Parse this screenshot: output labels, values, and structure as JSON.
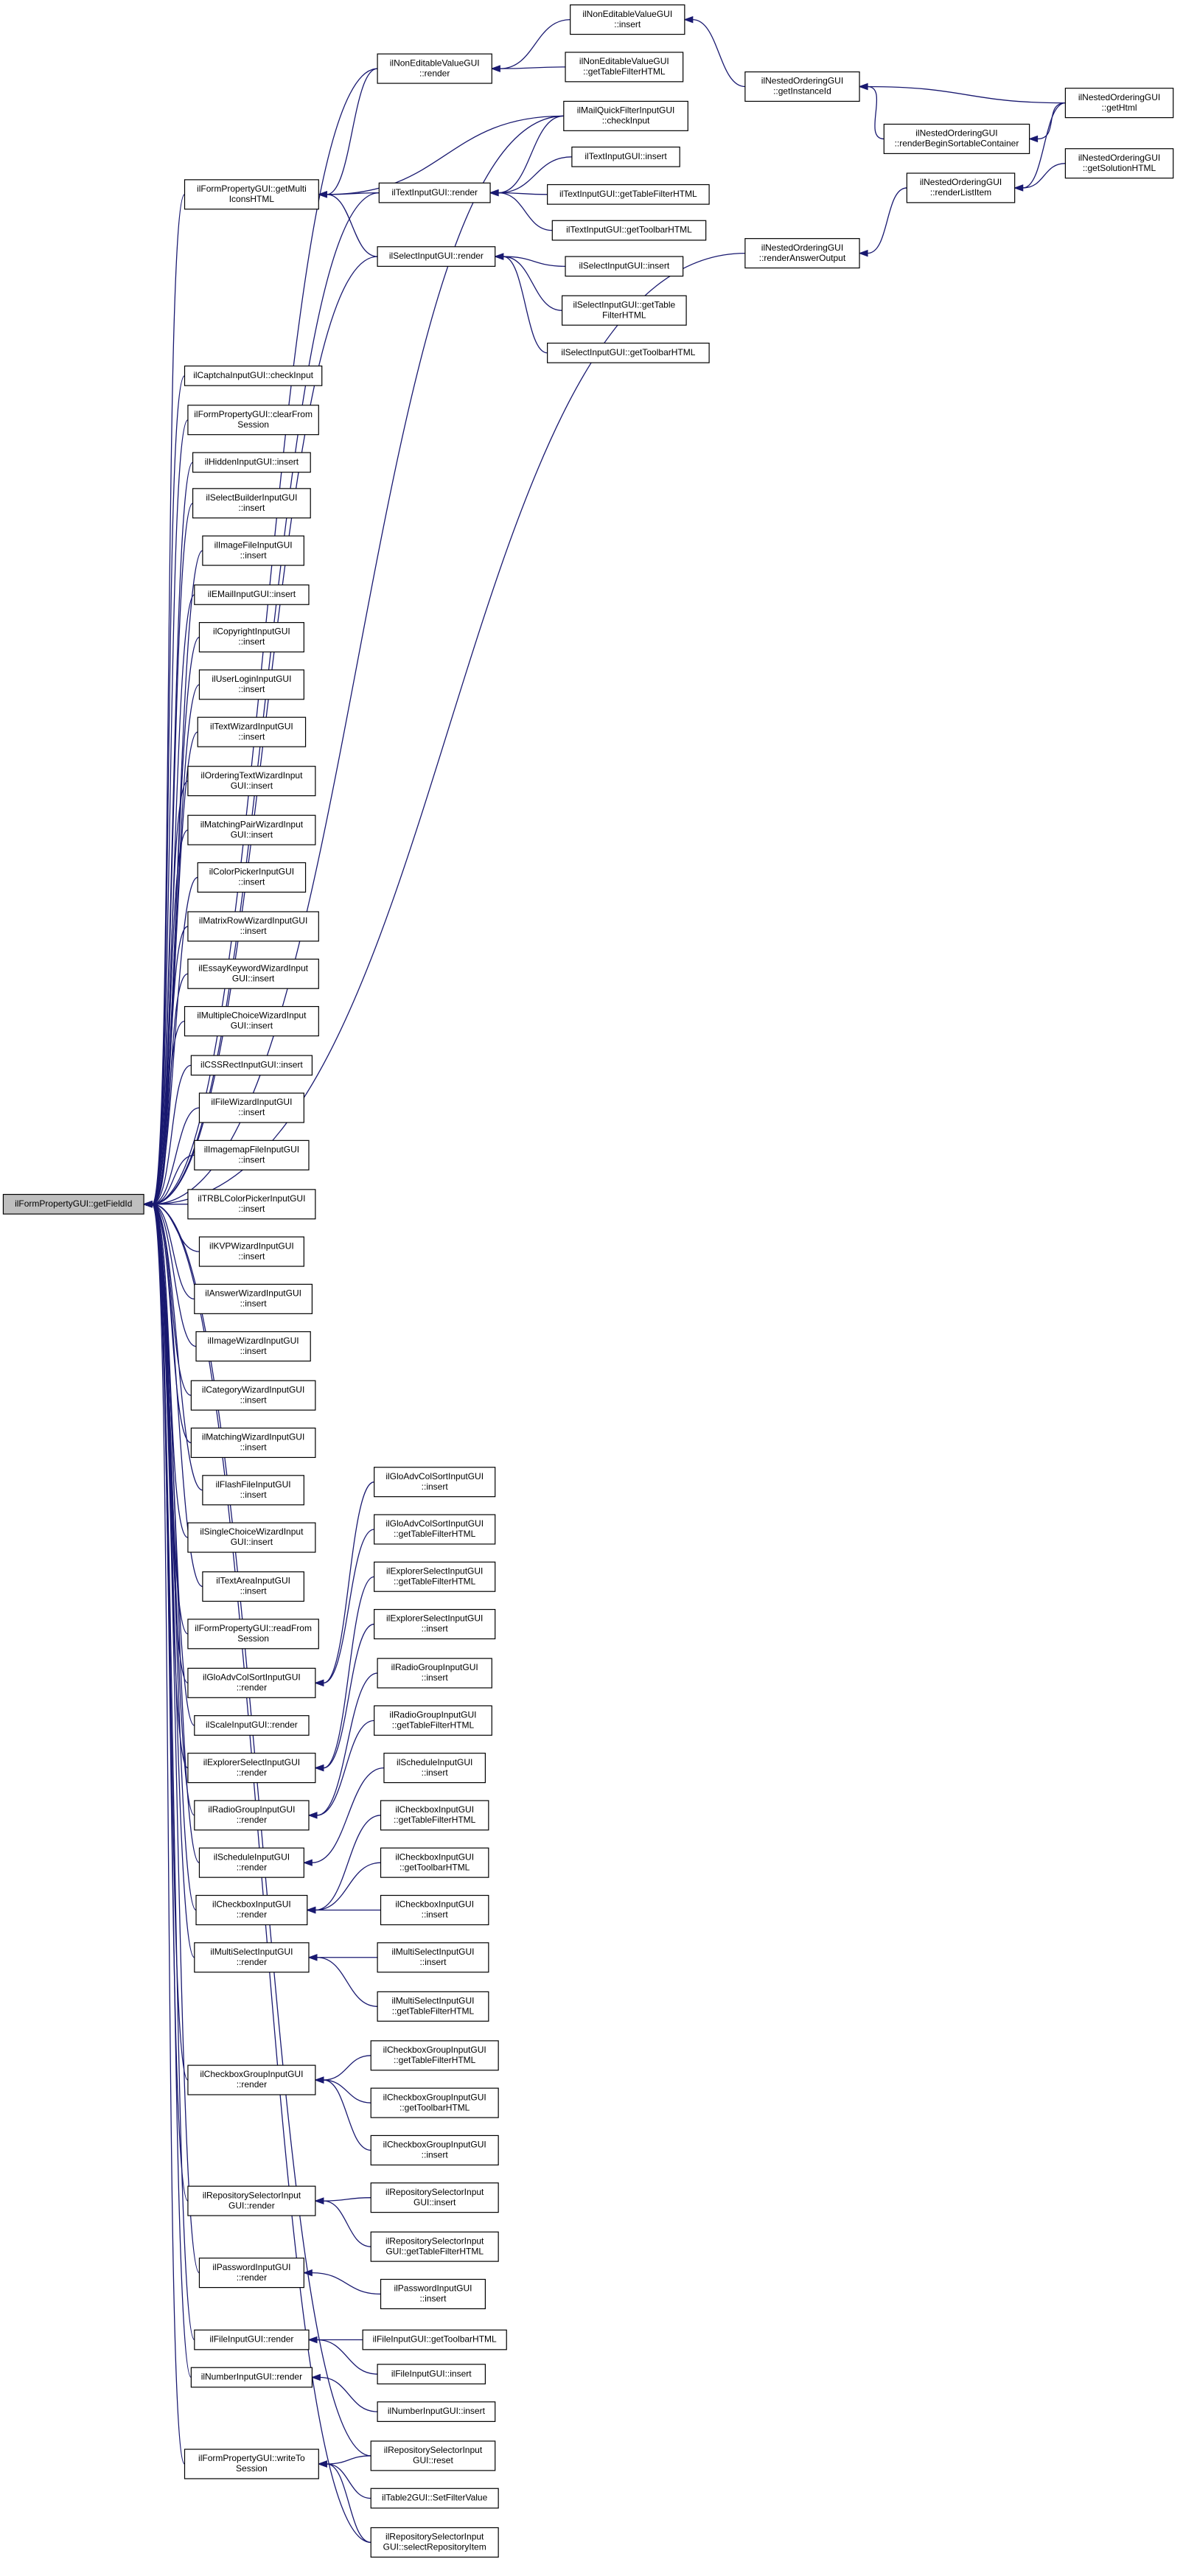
{
  "nodes": [
    {
      "label": [
        "ilFormPropertyGUI::getFieldId"
      ]
    },
    {
      "label": [
        "ilFormPropertyGUI::getMulti",
        "IconsHTML"
      ]
    },
    {
      "label": [
        "ilCaptchaInputGUI::checkInput"
      ]
    },
    {
      "label": [
        "ilFormPropertyGUI::clearFrom",
        "Session"
      ]
    },
    {
      "label": [
        "ilHiddenInputGUI::insert"
      ]
    },
    {
      "label": [
        "ilSelectBuilderInputGUI",
        "::insert"
      ]
    },
    {
      "label": [
        "ilImageFileInputGUI",
        "::insert"
      ]
    },
    {
      "label": [
        "ilEMailInputGUI::insert"
      ]
    },
    {
      "label": [
        "ilCopyrightInputGUI",
        "::insert"
      ]
    },
    {
      "label": [
        "ilUserLoginInputGUI",
        "::insert"
      ]
    },
    {
      "label": [
        "ilTextWizardInputGUI",
        "::insert"
      ]
    },
    {
      "label": [
        "ilOrderingTextWizardInput",
        "GUI::insert"
      ]
    },
    {
      "label": [
        "ilMatchingPairWizardInput",
        "GUI::insert"
      ]
    },
    {
      "label": [
        "ilColorPickerInputGUI",
        "::insert"
      ]
    },
    {
      "label": [
        "ilMatrixRowWizardInputGUI",
        "::insert"
      ]
    },
    {
      "label": [
        "ilEssayKeywordWizardInput",
        "GUI::insert"
      ]
    },
    {
      "label": [
        "ilMultipleChoiceWizardInput",
        "GUI::insert"
      ]
    },
    {
      "label": [
        "ilCSSRectInputGUI::insert"
      ]
    },
    {
      "label": [
        "ilFileWizardInputGUI",
        "::insert"
      ]
    },
    {
      "label": [
        "ilImagemapFileInputGUI",
        "::insert"
      ]
    },
    {
      "label": [
        "ilTRBLColorPickerInputGUI",
        "::insert"
      ]
    },
    {
      "label": [
        "ilKVPWizardInputGUI",
        "::insert"
      ]
    },
    {
      "label": [
        "ilAnswerWizardInputGUI",
        "::insert"
      ]
    },
    {
      "label": [
        "ilImageWizardInputGUI",
        "::insert"
      ]
    },
    {
      "label": [
        "ilCategoryWizardInputGUI",
        "::insert"
      ]
    },
    {
      "label": [
        "ilMatchingWizardInputGUI",
        "::insert"
      ]
    },
    {
      "label": [
        "ilFlashFileInputGUI",
        "::insert"
      ]
    },
    {
      "label": [
        "ilSingleChoiceWizardInput",
        "GUI::insert"
      ]
    },
    {
      "label": [
        "ilTextAreaInputGUI",
        "::insert"
      ]
    },
    {
      "label": [
        "ilFormPropertyGUI::readFrom",
        "Session"
      ]
    },
    {
      "label": [
        "ilGloAdvColSortInputGUI",
        "::render"
      ]
    },
    {
      "label": [
        "ilScaleInputGUI::render"
      ]
    },
    {
      "label": [
        "ilExplorerSelectInputGUI",
        "::render"
      ]
    },
    {
      "label": [
        "ilRadioGroupInputGUI",
        "::render"
      ]
    },
    {
      "label": [
        "ilScheduleInputGUI",
        "::render"
      ]
    },
    {
      "label": [
        "ilCheckboxInputGUI",
        "::render"
      ]
    },
    {
      "label": [
        "ilMultiSelectInputGUI",
        "::render"
      ]
    },
    {
      "label": [
        "ilCheckboxGroupInputGUI",
        "::render"
      ]
    },
    {
      "label": [
        "ilRepositorySelectorInput",
        "GUI::render"
      ]
    },
    {
      "label": [
        "ilPasswordInputGUI",
        "::render"
      ]
    },
    {
      "label": [
        "ilFileInputGUI::render"
      ]
    },
    {
      "label": [
        "ilNumberInputGUI::render"
      ]
    },
    {
      "label": [
        "ilFormPropertyGUI::writeTo",
        "Session"
      ]
    },
    {
      "label": [
        "ilNonEditableValueGUI",
        "::render"
      ]
    },
    {
      "label": [
        "ilTextInputGUI::render"
      ]
    },
    {
      "label": [
        "ilSelectInputGUI::render"
      ]
    },
    {
      "label": [
        "ilGloAdvColSortInputGUI",
        "::insert"
      ]
    },
    {
      "label": [
        "ilGloAdvColSortInputGUI",
        "::getTableFilterHTML"
      ]
    },
    {
      "label": [
        "ilExplorerSelectInputGUI",
        "::getTableFilterHTML"
      ]
    },
    {
      "label": [
        "ilExplorerSelectInputGUI",
        "::insert"
      ]
    },
    {
      "label": [
        "ilRadioGroupInputGUI",
        "::insert"
      ]
    },
    {
      "label": [
        "ilRadioGroupInputGUI",
        "::getTableFilterHTML"
      ]
    },
    {
      "label": [
        "ilScheduleInputGUI",
        "::insert"
      ]
    },
    {
      "label": [
        "ilCheckboxInputGUI",
        "::getTableFilterHTML"
      ]
    },
    {
      "label": [
        "ilCheckboxInputGUI",
        "::getToolbarHTML"
      ]
    },
    {
      "label": [
        "ilCheckboxInputGUI",
        "::insert"
      ]
    },
    {
      "label": [
        "ilMultiSelectInputGUI",
        "::insert"
      ]
    },
    {
      "label": [
        "ilMultiSelectInputGUI",
        "::getTableFilterHTML"
      ]
    },
    {
      "label": [
        "ilCheckboxGroupInputGUI",
        "::getTableFilterHTML"
      ]
    },
    {
      "label": [
        "ilCheckboxGroupInputGUI",
        "::getToolbarHTML"
      ]
    },
    {
      "label": [
        "ilCheckboxGroupInputGUI",
        "::insert"
      ]
    },
    {
      "label": [
        "ilRepositorySelectorInput",
        "GUI::insert"
      ]
    },
    {
      "label": [
        "ilRepositorySelectorInput",
        "GUI::getTableFilterHTML"
      ]
    },
    {
      "label": [
        "ilPasswordInputGUI",
        "::insert"
      ]
    },
    {
      "label": [
        "ilFileInputGUI::getToolbarHTML"
      ]
    },
    {
      "label": [
        "ilFileInputGUI::insert"
      ]
    },
    {
      "label": [
        "ilNumberInputGUI::insert"
      ]
    },
    {
      "label": [
        "ilRepositorySelectorInput",
        "GUI::reset"
      ]
    },
    {
      "label": [
        "ilTable2GUI::SetFilterValue"
      ]
    },
    {
      "label": [
        "ilRepositorySelectorInput",
        "GUI::selectRepositoryItem"
      ]
    },
    {
      "label": [
        "ilNonEditableValueGUI",
        "::insert"
      ]
    },
    {
      "label": [
        "ilNonEditableValueGUI",
        "::getTableFilterHTML"
      ]
    },
    {
      "label": [
        "ilMailQuickFilterInputGUI",
        "::checkInput"
      ]
    },
    {
      "label": [
        "ilTextInputGUI::insert"
      ]
    },
    {
      "label": [
        "ilTextInputGUI::getTableFilterHTML"
      ]
    },
    {
      "label": [
        "ilTextInputGUI::getToolbarHTML"
      ]
    },
    {
      "label": [
        "ilSelectInputGUI::insert"
      ]
    },
    {
      "label": [
        "ilSelectInputGUI::getTable",
        "FilterHTML"
      ]
    },
    {
      "label": [
        "ilSelectInputGUI::getToolbarHTML"
      ]
    },
    {
      "label": [
        "ilNestedOrderingGUI",
        "::getInstanceId"
      ]
    },
    {
      "label": [
        "ilNestedOrderingGUI",
        "::renderBeginSortableContainer"
      ]
    },
    {
      "label": [
        "ilNestedOrderingGUI",
        "::renderListItem"
      ]
    },
    {
      "label": [
        "ilNestedOrderingGUI",
        "::renderAnswerOutput"
      ]
    },
    {
      "label": [
        "ilNestedOrderingGUI",
        "::getHtml"
      ]
    },
    {
      "label": [
        "ilNestedOrderingGUI",
        "::getSolutionHTML"
      ]
    }
  ]
}
